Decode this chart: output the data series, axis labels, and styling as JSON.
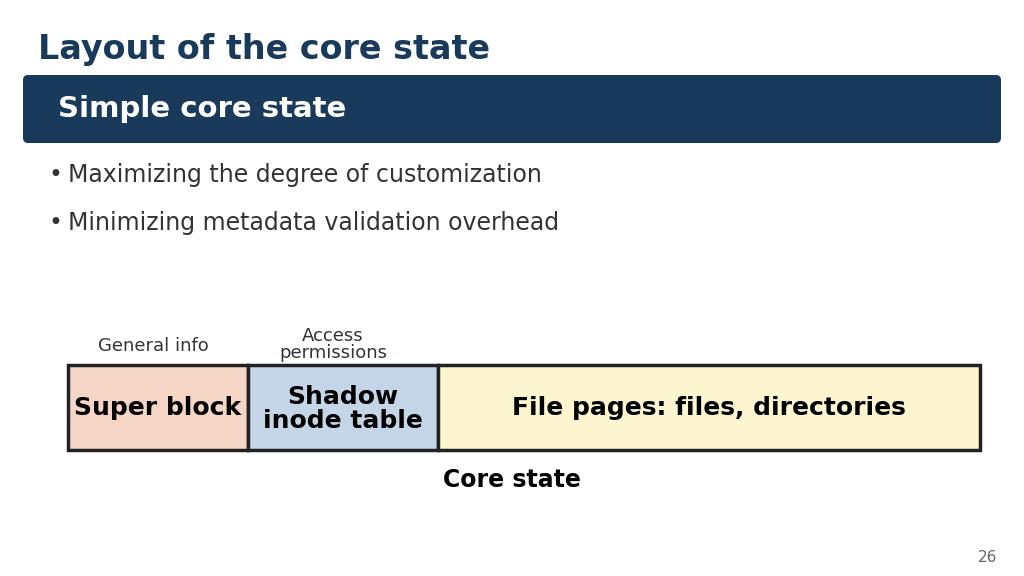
{
  "title": "Layout of the core state",
  "title_color": "#1a3a5c",
  "title_fontsize": 24,
  "banner_text": "Simple core state",
  "banner_bg": "#1a3a5c",
  "banner_text_color": "#ffffff",
  "banner_fontsize": 21,
  "bullet1": "Maximizing the degree of customization",
  "bullet2": "Minimizing metadata validation overhead",
  "bullet_fontsize": 17,
  "label1": "General info",
  "label2_line1": "Access",
  "label2_line2": "permissions",
  "label_fontsize": 13,
  "block1_text": "Super block",
  "block1_bg": "#f5d5c5",
  "block2_line1": "Shadow",
  "block2_line2": "inode table",
  "block2_bg": "#c5d5e8",
  "block3_text": "File pages: files, directories",
  "block3_bg": "#fdf5d0",
  "block_border": "#222222",
  "block_text_color": "#000000",
  "block_fontsize": 18,
  "caption_text": "Core state",
  "caption_fontsize": 17,
  "page_number": "26",
  "bg_color": "#ffffff"
}
